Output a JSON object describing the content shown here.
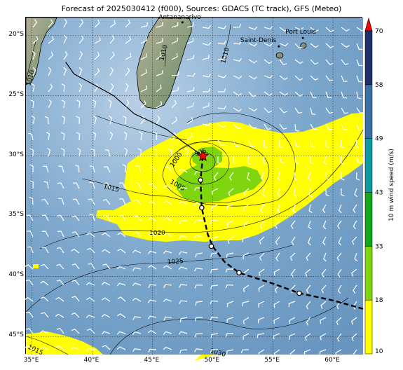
{
  "title": "Forecast of 2025030412 (f000), Sources: GDACS (TC track), GFS (Meteo)",
  "map": {
    "lon_range": [
      34.5,
      62.5
    ],
    "lat_range": [
      -46.5,
      -18.5
    ],
    "lon_ticks": [
      {
        "value": 35,
        "label": "35°E"
      },
      {
        "value": 40,
        "label": "40°E"
      },
      {
        "value": 45,
        "label": "45°E"
      },
      {
        "value": 50,
        "label": "50°E"
      },
      {
        "value": 55,
        "label": "55°E"
      },
      {
        "value": 60,
        "label": "60°E"
      }
    ],
    "lat_ticks": [
      {
        "value": -20,
        "label": "20°S"
      },
      {
        "value": -25,
        "label": "25°S"
      },
      {
        "value": -30,
        "label": "30°S"
      },
      {
        "value": -35,
        "label": "35°S"
      },
      {
        "value": -40,
        "label": "40°S"
      },
      {
        "value": -45,
        "label": "45°S"
      }
    ],
    "places": [
      {
        "name": "Antananarivo",
        "lon": 47.5,
        "lat": -18.9
      },
      {
        "name": "Port Louis",
        "lon": 57.5,
        "lat": -20.2
      },
      {
        "name": "Saint-Denis",
        "lon": 55.5,
        "lat": -20.9
      }
    ],
    "isobars": [
      {
        "label": "995",
        "value": 995
      },
      {
        "label": "1000",
        "value": 1000
      },
      {
        "label": "1005",
        "value": 1005
      },
      {
        "label": "1010",
        "value": 1010
      },
      {
        "label": "1015",
        "value": 1015
      },
      {
        "label": "1020",
        "value": 1020
      },
      {
        "label": "1025",
        "value": 1025
      },
      {
        "label": "1030",
        "value": 1030
      }
    ],
    "storm_center": {
      "lon": 49.2,
      "lat": -30.0
    },
    "past_track": [
      [
        37.8,
        -22.2
      ],
      [
        38.5,
        -23.2
      ],
      [
        40.0,
        -24.0
      ],
      [
        41.8,
        -25.0
      ],
      [
        43.5,
        -26.5
      ],
      [
        45.0,
        -27.2
      ],
      [
        46.2,
        -27.8
      ],
      [
        47.5,
        -28.8
      ],
      [
        49.2,
        -30.0
      ]
    ],
    "forecast_track": [
      [
        49.2,
        -30.0
      ],
      [
        49.0,
        -32.0
      ],
      [
        49.1,
        -34.3
      ],
      [
        49.6,
        -36.5
      ],
      [
        50.0,
        -37.5
      ],
      [
        51.0,
        -38.8
      ],
      [
        52.2,
        -39.7
      ],
      [
        55.0,
        -40.6
      ],
      [
        57.2,
        -41.4
      ],
      [
        60.0,
        -42.0
      ],
      [
        62.5,
        -42.7
      ]
    ],
    "forecast_positions": [
      [
        49.0,
        -32.0
      ],
      [
        49.1,
        -34.3
      ],
      [
        49.9,
        -37.5
      ],
      [
        52.2,
        -39.7
      ],
      [
        57.2,
        -41.4
      ]
    ],
    "colors": {
      "ocean": "#7ba4c9",
      "land": "#9daa8e",
      "wind_18": "#ffff00",
      "wind_33": "#7fd60f",
      "wind_43": "#12a81a",
      "coast": "#000000"
    }
  },
  "colorbar": {
    "label": "10 m wind speed (m/s)",
    "segments": [
      {
        "from": 10,
        "to": 18,
        "color": "#ffff00"
      },
      {
        "from": 18,
        "to": 33,
        "color": "#7fd60f"
      },
      {
        "from": 33,
        "to": 43,
        "color": "#12a81a"
      },
      {
        "from": 43,
        "to": 49,
        "color": "#0e9ba0"
      },
      {
        "from": 49,
        "to": 58,
        "color": "#3b70a7"
      },
      {
        "from": 58,
        "to": 70,
        "color": "#1d2f66"
      }
    ],
    "ticks": [
      "10",
      "18",
      "33",
      "43",
      "49",
      "58",
      "70"
    ],
    "extend_color": "#ff0000"
  }
}
